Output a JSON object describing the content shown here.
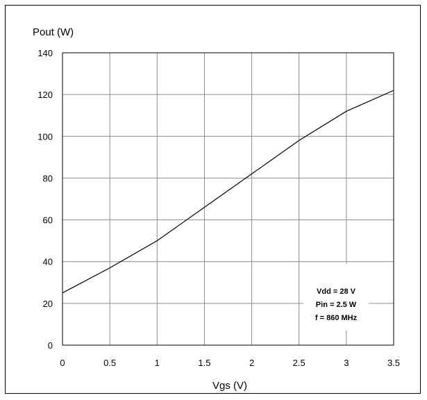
{
  "chart_data": {
    "type": "line",
    "title": "",
    "xlabel": "Vgs (V)",
    "ylabel": "Pout (W)",
    "xlim": [
      0,
      3.5
    ],
    "ylim": [
      0,
      140
    ],
    "x_ticks": [
      "0",
      "0.5",
      "1",
      "1.5",
      "2",
      "2.5",
      "3",
      "3.5"
    ],
    "y_ticks": [
      "0",
      "20",
      "40",
      "60",
      "80",
      "100",
      "120",
      "140"
    ],
    "grid": true,
    "series": [
      {
        "x": [
          0,
          0.5,
          1,
          1.5,
          2,
          2.5,
          3,
          3.5
        ],
        "values": [
          25,
          37,
          50,
          66,
          82,
          98,
          112,
          122
        ]
      }
    ],
    "annotations": [
      "Vdd = 28 V",
      "Pin = 2.5 W",
      "f = 860 MHz"
    ]
  }
}
